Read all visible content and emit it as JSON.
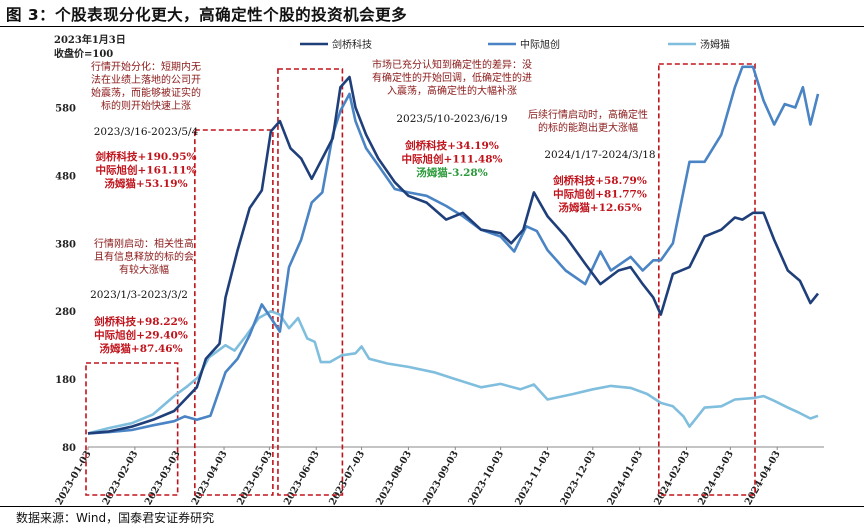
{
  "figure_title": "图 3：个股表现分化更大，高确定性个股的投资机会更多",
  "source_note": "数据来源：Wind，国泰君安证券研究",
  "chart_data": {
    "type": "line",
    "base_note": [
      "2023年1月3日",
      "收盘价=100"
    ],
    "ylim": [
      80,
      650
    ],
    "yticks": [
      80,
      180,
      280,
      380,
      480,
      580
    ],
    "xlim": [
      "2023-01-03",
      "2024-04-30"
    ],
    "xticks": [
      "2023-01-03",
      "2023-02-03",
      "2023-03-03",
      "2023-04-03",
      "2023-05-03",
      "2023-06-03",
      "2023-07-03",
      "2023-08-03",
      "2023-09-03",
      "2023-10-03",
      "2023-11-03",
      "2023-12-03",
      "2024-01-03",
      "2024-02-03",
      "2024-03-03",
      "2024-04-03"
    ],
    "legend_position": "top",
    "grid": false,
    "series": [
      {
        "name": "剑桥科技",
        "color": "#1f3f7a",
        "points": [
          [
            "2023-01-03",
            100
          ],
          [
            "2023-01-17",
            103
          ],
          [
            "2023-02-01",
            110
          ],
          [
            "2023-02-15",
            120
          ],
          [
            "2023-03-01",
            133
          ],
          [
            "2023-03-16",
            168
          ],
          [
            "2023-03-22",
            210
          ],
          [
            "2023-03-31",
            232
          ],
          [
            "2023-04-04",
            300
          ],
          [
            "2023-04-12",
            370
          ],
          [
            "2023-04-20",
            432
          ],
          [
            "2023-04-28",
            458
          ],
          [
            "2023-05-04",
            545
          ],
          [
            "2023-05-10",
            560
          ],
          [
            "2023-05-17",
            520
          ],
          [
            "2023-05-24",
            505
          ],
          [
            "2023-05-31",
            475
          ],
          [
            "2023-06-07",
            505
          ],
          [
            "2023-06-14",
            535
          ],
          [
            "2023-06-19",
            610
          ],
          [
            "2023-06-25",
            625
          ],
          [
            "2023-06-29",
            580
          ],
          [
            "2023-07-06",
            540
          ],
          [
            "2023-07-14",
            505
          ],
          [
            "2023-07-25",
            470
          ],
          [
            "2023-08-03",
            450
          ],
          [
            "2023-08-15",
            440
          ],
          [
            "2023-08-28",
            415
          ],
          [
            "2023-09-08",
            425
          ],
          [
            "2023-09-20",
            400
          ],
          [
            "2023-10-03",
            395
          ],
          [
            "2023-10-10",
            380
          ],
          [
            "2023-10-18",
            400
          ],
          [
            "2023-10-25",
            455
          ],
          [
            "2023-11-03",
            420
          ],
          [
            "2023-11-15",
            390
          ],
          [
            "2023-11-28",
            350
          ],
          [
            "2023-12-08",
            320
          ],
          [
            "2023-12-20",
            340
          ],
          [
            "2023-12-28",
            345
          ],
          [
            "2024-01-05",
            320
          ],
          [
            "2024-01-12",
            300
          ],
          [
            "2024-01-17",
            275
          ],
          [
            "2024-01-25",
            335
          ],
          [
            "2024-02-05",
            345
          ],
          [
            "2024-02-15",
            390
          ],
          [
            "2024-02-26",
            400
          ],
          [
            "2024-03-06",
            418
          ],
          [
            "2024-03-11",
            415
          ],
          [
            "2024-03-18",
            425
          ],
          [
            "2024-03-25",
            425
          ],
          [
            "2024-04-01",
            385
          ],
          [
            "2024-04-10",
            340
          ],
          [
            "2024-04-18",
            325
          ],
          [
            "2024-04-25",
            292
          ],
          [
            "2024-04-30",
            306
          ]
        ]
      },
      {
        "name": "中际旭创",
        "color": "#4a84c4",
        "points": [
          [
            "2023-01-03",
            100
          ],
          [
            "2023-01-17",
            102
          ],
          [
            "2023-02-01",
            105
          ],
          [
            "2023-02-15",
            112
          ],
          [
            "2023-03-01",
            118
          ],
          [
            "2023-03-08",
            125
          ],
          [
            "2023-03-16",
            120
          ],
          [
            "2023-03-25",
            126
          ],
          [
            "2023-04-04",
            190
          ],
          [
            "2023-04-12",
            210
          ],
          [
            "2023-04-20",
            245
          ],
          [
            "2023-04-28",
            290
          ],
          [
            "2023-05-04",
            270
          ],
          [
            "2023-05-10",
            250
          ],
          [
            "2023-05-16",
            345
          ],
          [
            "2023-05-24",
            385
          ],
          [
            "2023-05-31",
            440
          ],
          [
            "2023-06-07",
            455
          ],
          [
            "2023-06-14",
            540
          ],
          [
            "2023-06-19",
            575
          ],
          [
            "2023-06-25",
            600
          ],
          [
            "2023-06-29",
            560
          ],
          [
            "2023-07-06",
            520
          ],
          [
            "2023-07-14",
            495
          ],
          [
            "2023-07-25",
            460
          ],
          [
            "2023-08-03",
            455
          ],
          [
            "2023-08-15",
            450
          ],
          [
            "2023-08-28",
            435
          ],
          [
            "2023-09-08",
            420
          ],
          [
            "2023-09-20",
            400
          ],
          [
            "2023-10-03",
            390
          ],
          [
            "2023-10-12",
            368
          ],
          [
            "2023-10-20",
            405
          ],
          [
            "2023-10-27",
            398
          ],
          [
            "2023-11-03",
            370
          ],
          [
            "2023-11-15",
            340
          ],
          [
            "2023-11-28",
            320
          ],
          [
            "2023-12-08",
            368
          ],
          [
            "2023-12-15",
            340
          ],
          [
            "2023-12-28",
            360
          ],
          [
            "2024-01-05",
            340
          ],
          [
            "2024-01-12",
            355
          ],
          [
            "2024-01-17",
            355
          ],
          [
            "2024-01-25",
            380
          ],
          [
            "2024-02-05",
            500
          ],
          [
            "2024-02-15",
            500
          ],
          [
            "2024-02-26",
            540
          ],
          [
            "2024-03-06",
            610
          ],
          [
            "2024-03-11",
            640
          ],
          [
            "2024-03-18",
            640
          ],
          [
            "2024-03-25",
            590
          ],
          [
            "2024-04-01",
            555
          ],
          [
            "2024-04-08",
            585
          ],
          [
            "2024-04-15",
            580
          ],
          [
            "2024-04-20",
            610
          ],
          [
            "2024-04-25",
            555
          ],
          [
            "2024-04-30",
            600
          ]
        ]
      },
      {
        "name": "汤姆猫",
        "color": "#80bede",
        "points": [
          [
            "2023-01-03",
            100
          ],
          [
            "2023-01-17",
            108
          ],
          [
            "2023-02-01",
            115
          ],
          [
            "2023-02-15",
            128
          ],
          [
            "2023-03-01",
            155
          ],
          [
            "2023-03-10",
            170
          ],
          [
            "2023-03-17",
            183
          ],
          [
            "2023-03-24",
            212
          ],
          [
            "2023-04-04",
            230
          ],
          [
            "2023-04-10",
            222
          ],
          [
            "2023-04-18",
            245
          ],
          [
            "2023-04-26",
            270
          ],
          [
            "2023-05-04",
            280
          ],
          [
            "2023-05-10",
            275
          ],
          [
            "2023-05-16",
            255
          ],
          [
            "2023-05-22",
            270
          ],
          [
            "2023-05-28",
            240
          ],
          [
            "2023-06-02",
            235
          ],
          [
            "2023-06-06",
            205
          ],
          [
            "2023-06-12",
            205
          ],
          [
            "2023-06-20",
            215
          ],
          [
            "2023-06-29",
            218
          ],
          [
            "2023-07-03",
            228
          ],
          [
            "2023-07-08",
            210
          ],
          [
            "2023-07-20",
            203
          ],
          [
            "2023-08-03",
            198
          ],
          [
            "2023-08-20",
            190
          ],
          [
            "2023-09-03",
            180
          ],
          [
            "2023-09-20",
            168
          ],
          [
            "2023-10-03",
            173
          ],
          [
            "2023-10-16",
            165
          ],
          [
            "2023-10-25",
            172
          ],
          [
            "2023-11-03",
            150
          ],
          [
            "2023-11-20",
            158
          ],
          [
            "2023-12-03",
            165
          ],
          [
            "2023-12-15",
            170
          ],
          [
            "2023-12-28",
            167
          ],
          [
            "2024-01-08",
            158
          ],
          [
            "2024-01-17",
            145
          ],
          [
            "2024-01-25",
            140
          ],
          [
            "2024-02-01",
            125
          ],
          [
            "2024-02-05",
            110
          ],
          [
            "2024-02-15",
            138
          ],
          [
            "2024-02-26",
            140
          ],
          [
            "2024-03-06",
            150
          ],
          [
            "2024-03-18",
            152
          ],
          [
            "2024-03-25",
            155
          ],
          [
            "2024-04-01",
            148
          ],
          [
            "2024-04-10",
            138
          ],
          [
            "2024-04-18",
            130
          ],
          [
            "2024-04-25",
            122
          ],
          [
            "2024-04-30",
            126
          ]
        ]
      }
    ],
    "annotations": [
      {
        "lines": [
          "行情开始分化：短期内无",
          "法在业绩上落地的公司开",
          "始震荡，而能够被证实的",
          "标的则开始快速上涨"
        ],
        "color": "#8b1a1a",
        "size": 10
      },
      {
        "lines": [
          "2023/3/16-2023/5/4"
        ],
        "color": "#111",
        "size": 10.5
      },
      {
        "lines": [
          "剑桥科技+190.95%",
          "中际旭创+161.11%",
          "汤姆猫+53.19%"
        ],
        "color": "#c0141c",
        "size": 10.5,
        "bold": true
      },
      {
        "lines": [
          "行情刚启动：相关性高",
          "且有信息释放的标的会",
          "有较大涨幅"
        ],
        "color": "#8b1a1a",
        "size": 10
      },
      {
        "lines": [
          "2023/1/3-2023/3/2"
        ],
        "color": "#111",
        "size": 10.5
      },
      {
        "lines": [
          "剑桥科技+98.22%",
          "中际旭创+29.40%",
          "汤姆猫+87.46%"
        ],
        "color": "#c0141c",
        "size": 10.5,
        "bold": true
      },
      {
        "lines": [
          "市场已充分认知到确定性的差异：没",
          "有确定性的开始回调，低确定性的进",
          "入震荡，高确定性的大幅补涨"
        ],
        "color": "#8b1a1a",
        "size": 10
      },
      {
        "lines": [
          "2023/5/10-2023/6/19"
        ],
        "color": "#111",
        "size": 10.5
      },
      {
        "lines": [
          "剑桥科技+34.19%",
          "中际旭创+111.48%"
        ],
        "color": "#c0141c",
        "size": 10.5,
        "bold": true
      },
      {
        "lines": [
          "汤姆猫-3.28%"
        ],
        "color": "#2a9a3a",
        "size": 10.5,
        "bold": true
      },
      {
        "lines": [
          "后续行情启动时，高确定性",
          "的标的能跑出更大涨幅"
        ],
        "color": "#8b1a1a",
        "size": 10
      },
      {
        "lines": [
          "2024/1/17-2024/3/18"
        ],
        "color": "#111",
        "size": 10.5
      },
      {
        "lines": [
          "剑桥科技+58.79%",
          "中际旭创+81.77%",
          "汤姆猫+12.65%"
        ],
        "color": "#c0141c",
        "size": 10.5,
        "bold": true
      }
    ],
    "highlight_periods": [
      [
        "2023-01-03",
        "2023-03-02"
      ],
      [
        "2023-03-16",
        "2023-05-04"
      ],
      [
        "2023-05-10",
        "2023-06-19"
      ],
      [
        "2024-01-17",
        "2024-03-18"
      ]
    ]
  }
}
